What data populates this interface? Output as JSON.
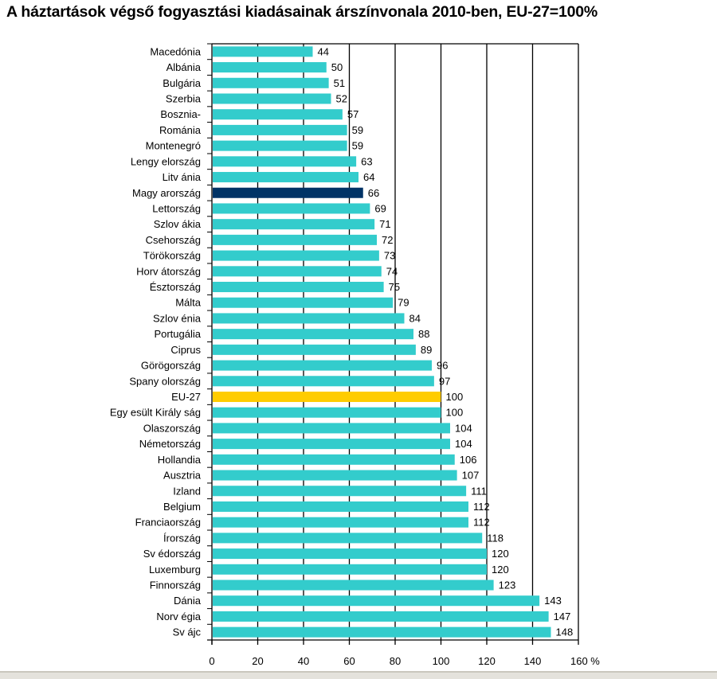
{
  "chart_data": {
    "type": "bar",
    "orientation": "horizontal",
    "title": "A háztartások végső fogyasztási kiadásainak árszínvonala 2010-ben, EU-27=100%",
    "xlabel": "",
    "ylabel": "",
    "xlim": [
      0,
      160
    ],
    "x_ticks": [
      0,
      20,
      40,
      60,
      80,
      100,
      120,
      140,
      160
    ],
    "x_tick_labels": [
      "0",
      "20",
      "40",
      "60",
      "80",
      "100",
      "120",
      "140",
      "160 %"
    ],
    "grid": true,
    "legend": "none",
    "colors": {
      "default": "#33cccc",
      "highlight_hungary": "#003366",
      "highlight_eu": "#ffcc00"
    },
    "categories": [
      "Macedónia",
      "Albánia",
      "Bulgária",
      "Szerbia",
      "Bosznia-",
      "Románia",
      "Montenegró",
      "Lengy elország",
      "Litv ánia",
      "Magy arország",
      "Lettország",
      "Szlov ákia",
      "Csehország",
      "Törökország",
      "Horv átország",
      "Észtország",
      "Málta",
      "Szlov énia",
      "Portugália",
      "Ciprus",
      "Görögország",
      "Spany olország",
      "EU-27",
      "Egy esült Király ság",
      "Olaszország",
      "Németország",
      "Hollandia",
      "Ausztria",
      "Izland",
      "Belgium",
      "Franciaország",
      "Írország",
      "Sv édország",
      "Luxemburg",
      "Finnország",
      "Dánia",
      "Norv égia",
      "Sv ájc"
    ],
    "values": [
      44,
      50,
      51,
      52,
      57,
      59,
      59,
      63,
      64,
      66,
      69,
      71,
      72,
      73,
      74,
      75,
      79,
      84,
      88,
      89,
      96,
      97,
      100,
      100,
      104,
      104,
      106,
      107,
      111,
      112,
      112,
      118,
      120,
      120,
      123,
      143,
      147,
      148
    ],
    "highlights": {
      "Magy arország": "highlight_hungary",
      "EU-27": "highlight_eu"
    }
  }
}
